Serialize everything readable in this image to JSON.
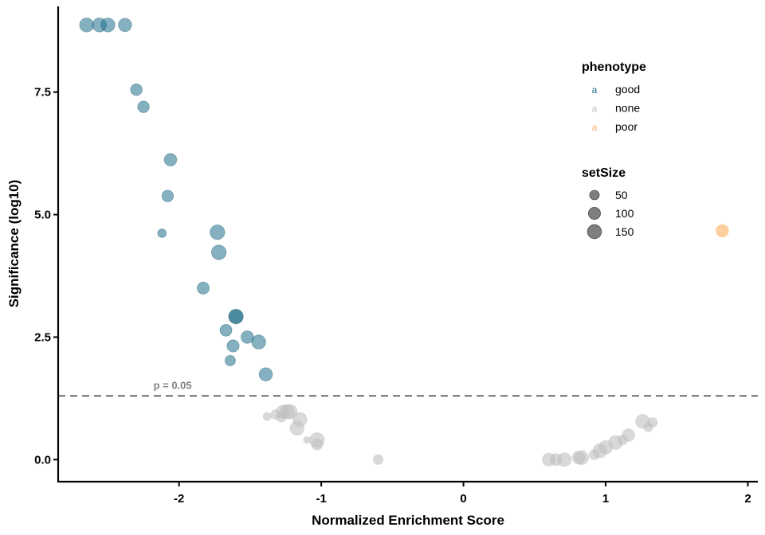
{
  "chart_data": {
    "type": "scatter",
    "xlabel": "Normalized Enrichment Score",
    "ylabel": "Significance (log10)",
    "xlim": [
      -2.85,
      2.07
    ],
    "ylim": [
      -0.45,
      9.25
    ],
    "x_ticks": [
      -2,
      -1,
      0,
      1,
      2
    ],
    "x_tick_labels": [
      "-2",
      "-1",
      "0",
      "1",
      "2"
    ],
    "y_ticks": [
      0,
      2.5,
      5,
      7.5
    ],
    "y_tick_labels": [
      "0.0",
      "2.5",
      "5.0",
      "7.5"
    ],
    "threshold": {
      "y": 1.3,
      "label": "p = 0.05",
      "label_x": -2.18
    },
    "grid": false,
    "legend_position": "top-right",
    "phenotype_legend": {
      "title": "phenotype",
      "key_glyph": "a",
      "items": [
        {
          "label": "good",
          "color": "#1f6f8b"
        },
        {
          "label": "none",
          "color": "#bfbfbf"
        },
        {
          "label": "poor",
          "color": "#f9b66a"
        }
      ]
    },
    "size_legend": {
      "title": "setSize",
      "items": [
        {
          "label": "50",
          "value": 50
        },
        {
          "label": "100",
          "value": 100
        },
        {
          "label": "150",
          "value": 150
        }
      ]
    },
    "points": [
      {
        "x": -2.65,
        "y": 8.87,
        "size": 150,
        "phenotype": "good"
      },
      {
        "x": -2.56,
        "y": 8.87,
        "size": 150,
        "phenotype": "good"
      },
      {
        "x": -2.5,
        "y": 8.87,
        "size": 150,
        "phenotype": "good"
      },
      {
        "x": -2.38,
        "y": 8.87,
        "size": 130,
        "phenotype": "good"
      },
      {
        "x": -2.3,
        "y": 7.55,
        "size": 90,
        "phenotype": "good"
      },
      {
        "x": -2.25,
        "y": 7.2,
        "size": 90,
        "phenotype": "good"
      },
      {
        "x": -2.06,
        "y": 6.12,
        "size": 110,
        "phenotype": "good"
      },
      {
        "x": -2.08,
        "y": 5.38,
        "size": 90,
        "phenotype": "good"
      },
      {
        "x": -2.12,
        "y": 4.62,
        "size": 35,
        "phenotype": "good"
      },
      {
        "x": -1.73,
        "y": 4.64,
        "size": 170,
        "phenotype": "good"
      },
      {
        "x": -1.72,
        "y": 4.23,
        "size": 170,
        "phenotype": "good"
      },
      {
        "x": -1.83,
        "y": 3.5,
        "size": 100,
        "phenotype": "good"
      },
      {
        "x": -1.6,
        "y": 2.92,
        "size": 170,
        "phenotype": "good"
      },
      {
        "x": -1.6,
        "y": 2.92,
        "size": 140,
        "phenotype": "good"
      },
      {
        "x": -1.67,
        "y": 2.64,
        "size": 95,
        "phenotype": "good"
      },
      {
        "x": -1.62,
        "y": 2.32,
        "size": 100,
        "phenotype": "good"
      },
      {
        "x": -1.52,
        "y": 2.5,
        "size": 110,
        "phenotype": "good"
      },
      {
        "x": -1.44,
        "y": 2.4,
        "size": 150,
        "phenotype": "good"
      },
      {
        "x": -1.64,
        "y": 2.02,
        "size": 65,
        "phenotype": "good"
      },
      {
        "x": -1.39,
        "y": 1.74,
        "size": 130,
        "phenotype": "good"
      },
      {
        "x": 1.82,
        "y": 4.67,
        "size": 110,
        "phenotype": "poor"
      },
      {
        "x": -1.38,
        "y": 0.88,
        "size": 30,
        "phenotype": "none"
      },
      {
        "x": -1.32,
        "y": 0.92,
        "size": 50,
        "phenotype": "none"
      },
      {
        "x": -1.28,
        "y": 0.87,
        "size": 60,
        "phenotype": "none"
      },
      {
        "x": -1.27,
        "y": 0.98,
        "size": 120,
        "phenotype": "none"
      },
      {
        "x": -1.24,
        "y": 0.98,
        "size": 150,
        "phenotype": "none"
      },
      {
        "x": -1.22,
        "y": 0.98,
        "size": 160,
        "phenotype": "none"
      },
      {
        "x": -1.15,
        "y": 0.82,
        "size": 150,
        "phenotype": "none"
      },
      {
        "x": -1.17,
        "y": 0.64,
        "size": 150,
        "phenotype": "none"
      },
      {
        "x": -1.1,
        "y": 0.4,
        "size": 15,
        "phenotype": "none"
      },
      {
        "x": -1.03,
        "y": 0.4,
        "size": 170,
        "phenotype": "none"
      },
      {
        "x": -1.03,
        "y": 0.31,
        "size": 80,
        "phenotype": "none"
      },
      {
        "x": -0.6,
        "y": 0.0,
        "size": 55,
        "phenotype": "none"
      },
      {
        "x": 0.6,
        "y": 0.0,
        "size": 120,
        "phenotype": "none"
      },
      {
        "x": 0.65,
        "y": 0.0,
        "size": 100,
        "phenotype": "none"
      },
      {
        "x": 0.71,
        "y": 0.0,
        "size": 140,
        "phenotype": "none"
      },
      {
        "x": 0.81,
        "y": 0.04,
        "size": 120,
        "phenotype": "none"
      },
      {
        "x": 0.83,
        "y": 0.04,
        "size": 150,
        "phenotype": "none"
      },
      {
        "x": 0.92,
        "y": 0.1,
        "size": 60,
        "phenotype": "none"
      },
      {
        "x": 0.96,
        "y": 0.18,
        "size": 150,
        "phenotype": "none"
      },
      {
        "x": 1.0,
        "y": 0.25,
        "size": 140,
        "phenotype": "none"
      },
      {
        "x": 1.07,
        "y": 0.35,
        "size": 150,
        "phenotype": "none"
      },
      {
        "x": 1.12,
        "y": 0.4,
        "size": 50,
        "phenotype": "none"
      },
      {
        "x": 1.16,
        "y": 0.5,
        "size": 110,
        "phenotype": "none"
      },
      {
        "x": 1.26,
        "y": 0.78,
        "size": 150,
        "phenotype": "none"
      },
      {
        "x": 1.3,
        "y": 0.66,
        "size": 40,
        "phenotype": "none"
      },
      {
        "x": 1.33,
        "y": 0.76,
        "size": 50,
        "phenotype": "none"
      }
    ]
  }
}
